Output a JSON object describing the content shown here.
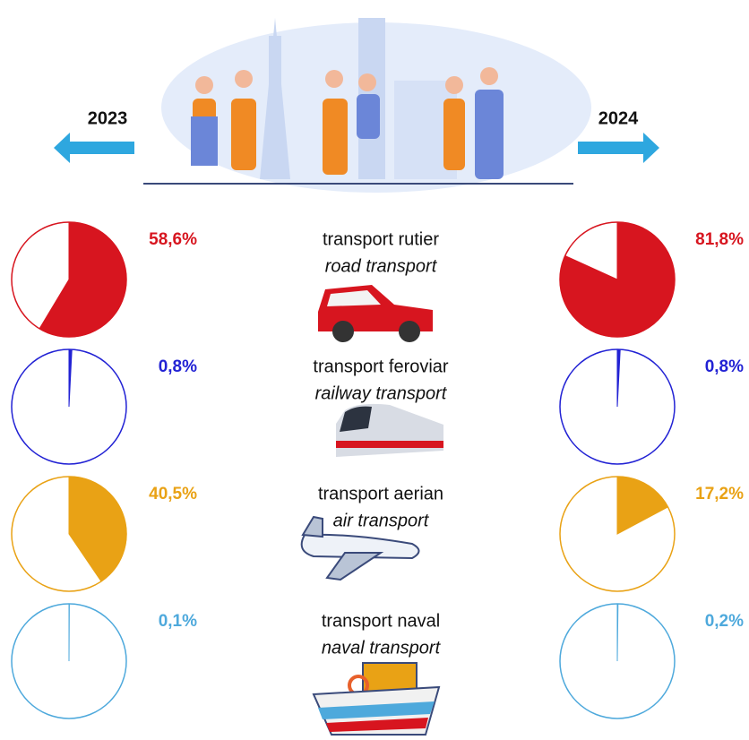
{
  "chart_data": {
    "type": "pie",
    "years": [
      "2023",
      "2024"
    ],
    "rows": [
      {
        "label": "transport rutier",
        "label_en": "road transport",
        "color": "#d7151f",
        "values": [
          58.6,
          81.8
        ],
        "value_labels": [
          "58,6%",
          "81,8%"
        ]
      },
      {
        "label": "transport feroviar",
        "label_en": "railway transport",
        "color": "#2222d4",
        "values": [
          0.8,
          0.8
        ],
        "value_labels": [
          "0,8%",
          "0,8%"
        ]
      },
      {
        "label": "transport aerian",
        "label_en": "air transport",
        "color": "#e9a215",
        "values": [
          40.5,
          17.2
        ],
        "value_labels": [
          "40,5%",
          "17,2%"
        ]
      },
      {
        "label": "transport naval",
        "label_en": "naval transport",
        "color": "#4ea9dc",
        "values": [
          0.1,
          0.2
        ],
        "value_labels": [
          "0,1%",
          "0,2%"
        ]
      }
    ]
  }
}
